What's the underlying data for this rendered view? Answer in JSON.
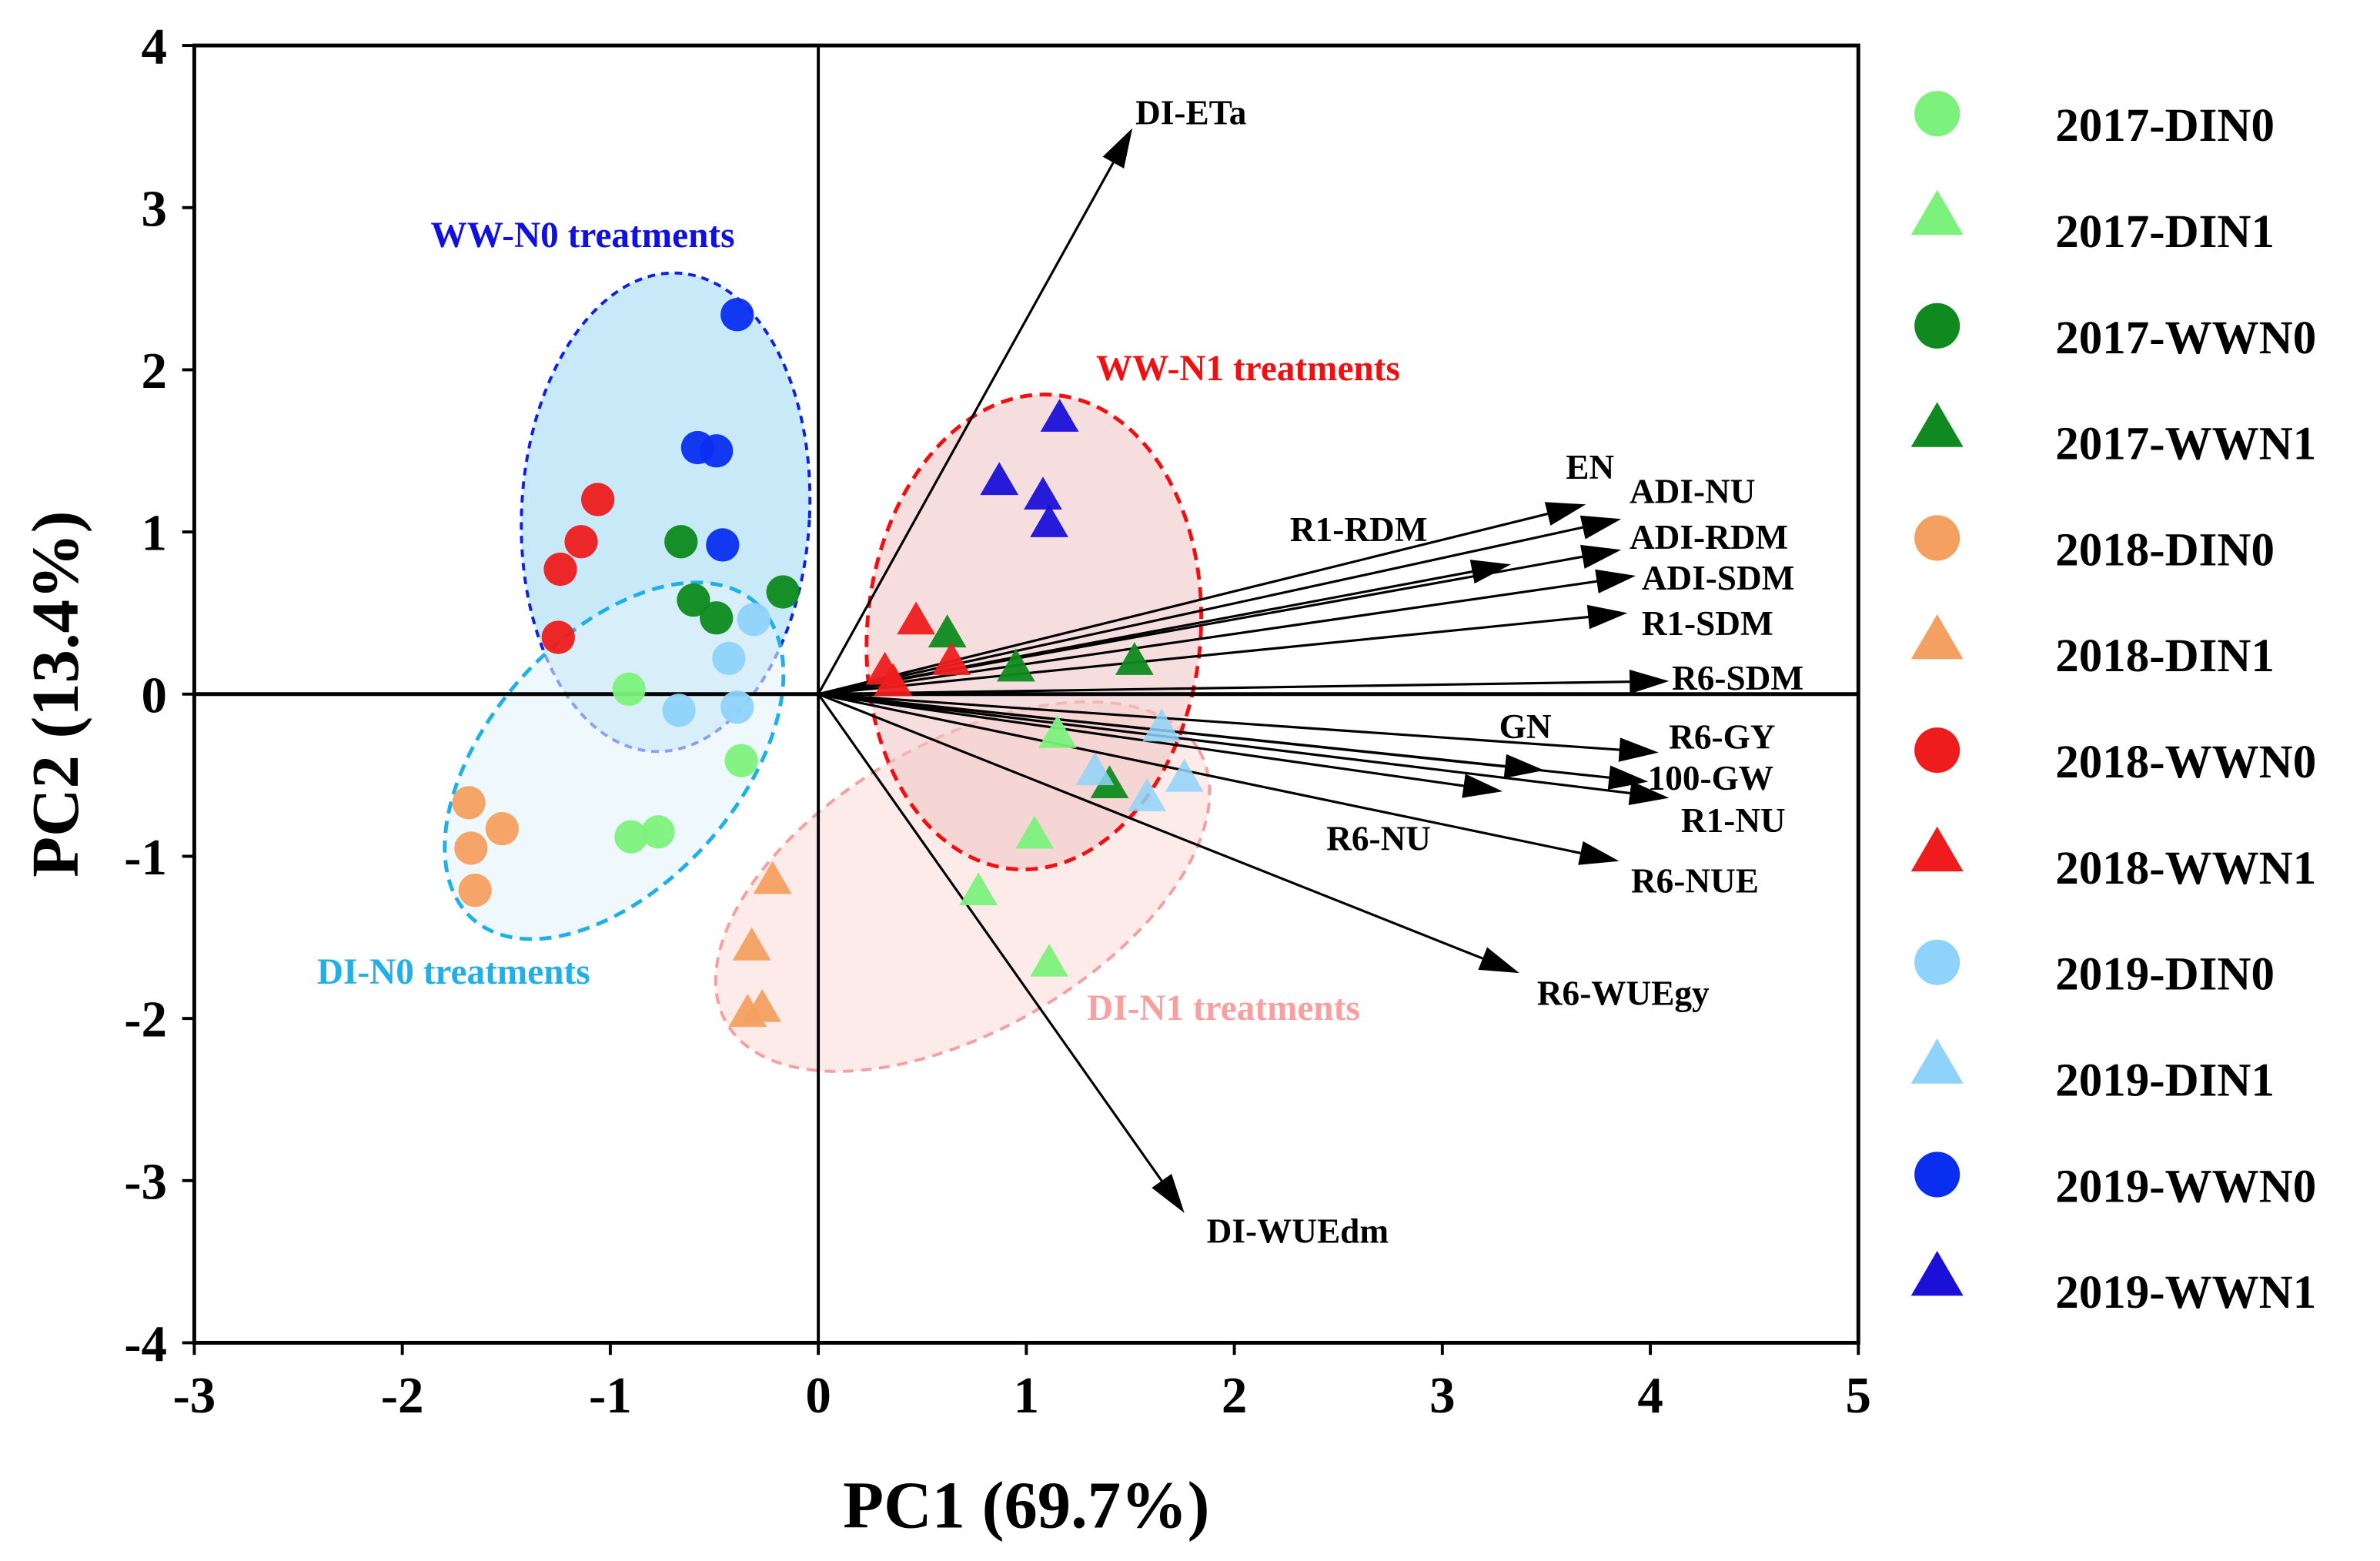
{
  "chart_data": {
    "type": "scatter",
    "subtype": "pca-biplot",
    "xlabel": "PC1 (69.7%)",
    "ylabel": "PC2 (13.4%)",
    "xlim": [
      -3,
      5
    ],
    "ylim": [
      -4,
      4
    ],
    "xticks": [
      "-3",
      "-2",
      "-1",
      "0",
      "1",
      "2",
      "3",
      "4",
      "5"
    ],
    "yticks": [
      "4",
      "3",
      "2",
      "1",
      "0",
      "-1",
      "-2",
      "-3",
      "-4"
    ],
    "grid": false,
    "legend_position": "right",
    "series": [
      {
        "name": "2017-DIN0",
        "marker": "circle",
        "color": "#7CF27C",
        "points": [
          [
            -0.91,
            0.03
          ],
          [
            -0.37,
            -0.41
          ],
          [
            -0.9,
            -0.88
          ],
          [
            -0.77,
            -0.85
          ]
        ]
      },
      {
        "name": "2017-DIN1",
        "marker": "triangle",
        "color": "#7CF27C",
        "points": [
          [
            1.15,
            -0.25
          ],
          [
            1.04,
            -0.87
          ],
          [
            0.77,
            -1.22
          ],
          [
            1.11,
            -1.66
          ]
        ]
      },
      {
        "name": "2017-WWN0",
        "marker": "circle",
        "color": "#0E8A1E",
        "points": [
          [
            -0.66,
            0.94
          ],
          [
            -0.6,
            0.58
          ],
          [
            -0.49,
            0.47
          ],
          [
            -0.17,
            0.63
          ]
        ]
      },
      {
        "name": "2017-WWN1",
        "marker": "triangle",
        "color": "#0E8A1E",
        "points": [
          [
            0.62,
            0.37
          ],
          [
            0.95,
            0.16
          ],
          [
            1.52,
            0.2
          ],
          [
            1.4,
            -0.56
          ]
        ]
      },
      {
        "name": "2018-DIN0",
        "marker": "circle",
        "color": "#F4A060",
        "points": [
          [
            -1.68,
            -0.67
          ],
          [
            -1.52,
            -0.83
          ],
          [
            -1.67,
            -0.95
          ],
          [
            -1.65,
            -1.21
          ]
        ]
      },
      {
        "name": "2018-DIN1",
        "marker": "triangle",
        "color": "#F4A060",
        "points": [
          [
            -0.22,
            -1.15
          ],
          [
            -0.32,
            -1.56
          ],
          [
            -0.34,
            -1.97
          ],
          [
            -0.27,
            -1.94
          ]
        ]
      },
      {
        "name": "2018-WWN0",
        "marker": "circle",
        "color": "#EE1C1C",
        "points": [
          [
            -1.06,
            1.2
          ],
          [
            -1.14,
            0.94
          ],
          [
            -1.24,
            0.77
          ],
          [
            -1.25,
            0.35
          ]
        ]
      },
      {
        "name": "2018-WWN1",
        "marker": "triangle",
        "color": "#EE1C1C",
        "points": [
          [
            0.47,
            0.45
          ],
          [
            0.32,
            0.14
          ],
          [
            0.36,
            0.07
          ],
          [
            0.64,
            0.2
          ]
        ]
      },
      {
        "name": "2019-DIN0",
        "marker": "circle",
        "color": "#8FD3FA",
        "points": [
          [
            -0.31,
            0.46
          ],
          [
            -0.43,
            0.22
          ],
          [
            -0.67,
            -0.1
          ],
          [
            -0.39,
            -0.08
          ]
        ]
      },
      {
        "name": "2019-DIN1",
        "marker": "triangle",
        "color": "#8FD3FA",
        "points": [
          [
            1.65,
            -0.21
          ],
          [
            1.33,
            -0.48
          ],
          [
            1.58,
            -0.64
          ],
          [
            1.76,
            -0.52
          ]
        ]
      },
      {
        "name": "2019-WWN0",
        "marker": "circle",
        "color": "#0A2EF0",
        "points": [
          [
            -0.39,
            2.34
          ],
          [
            -0.58,
            1.52
          ],
          [
            -0.49,
            1.5
          ],
          [
            -0.46,
            0.92
          ]
        ]
      },
      {
        "name": "2019-WWN1",
        "marker": "triangle",
        "color": "#1A10D8",
        "points": [
          [
            1.16,
            1.7
          ],
          [
            0.87,
            1.31
          ],
          [
            1.08,
            1.22
          ],
          [
            1.11,
            1.05
          ]
        ]
      }
    ],
    "loadings": [
      {
        "name": "DI-ETa",
        "x": 1.51,
        "y": 3.49
      },
      {
        "name": "EN",
        "x": 3.69,
        "y": 1.17
      },
      {
        "name": "ADI-NU",
        "x": 3.86,
        "y": 1.08
      },
      {
        "name": "R1-RDM",
        "x": 3.33,
        "y": 0.8
      },
      {
        "name": "ADI-RDM",
        "x": 3.86,
        "y": 0.89
      },
      {
        "name": "ADI-SDM",
        "x": 3.93,
        "y": 0.73
      },
      {
        "name": "R1-SDM",
        "x": 3.89,
        "y": 0.5
      },
      {
        "name": "R6-SDM",
        "x": 4.09,
        "y": 0.08
      },
      {
        "name": "R6-GY",
        "x": 4.04,
        "y": -0.36
      },
      {
        "name": "GN",
        "x": 3.49,
        "y": -0.47
      },
      {
        "name": "100-GW",
        "x": 3.99,
        "y": -0.54
      },
      {
        "name": "R1-NU",
        "x": 4.09,
        "y": -0.64
      },
      {
        "name": "R6-NU",
        "x": 3.29,
        "y": -0.6
      },
      {
        "name": "R6-NUE",
        "x": 3.85,
        "y": -1.03
      },
      {
        "name": "R6-WUEgy",
        "x": 3.37,
        "y": -1.72
      },
      {
        "name": "DI-WUEdm",
        "x": 1.76,
        "y": -3.2
      }
    ],
    "annotations": [
      {
        "text": "WW-N0 treatments",
        "color": "#1010E0"
      },
      {
        "text": "WW-N1 treatments",
        "color": "#F01010"
      },
      {
        "text": "DI-N0 treatments",
        "color": "#20B0E8"
      },
      {
        "text": "DI-N1 treatments",
        "color": "#F8A0A0"
      }
    ]
  }
}
